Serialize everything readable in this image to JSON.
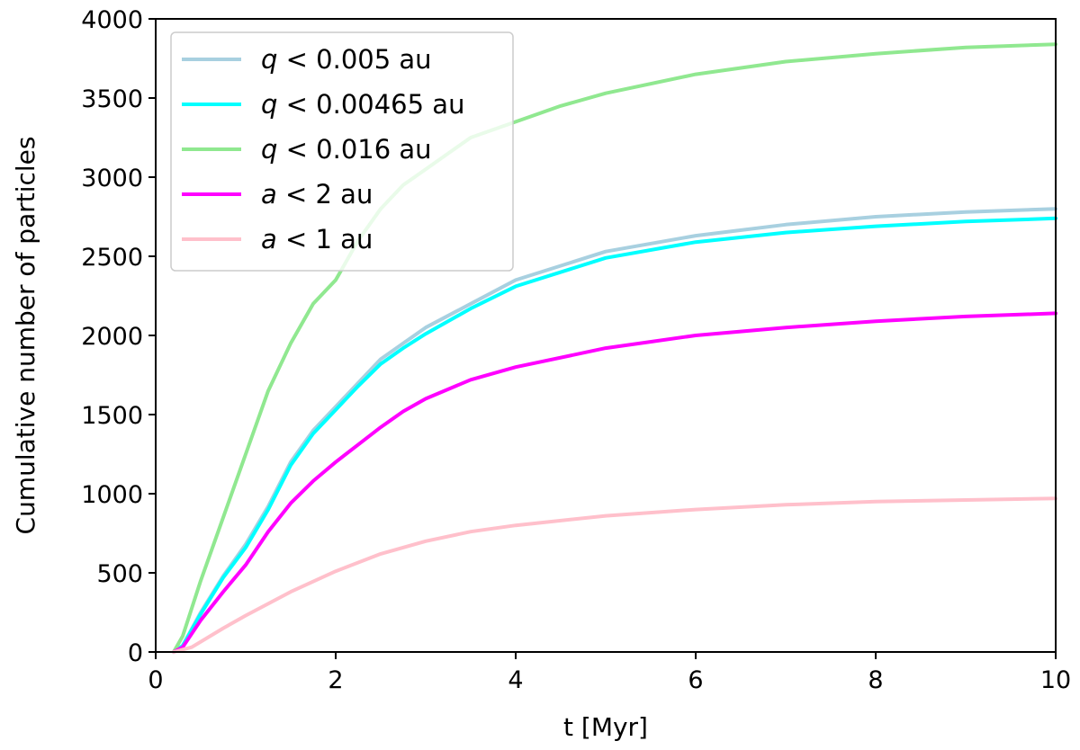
{
  "chart_data": {
    "type": "line",
    "xlabel": "t [Myr]",
    "ylabel": "Cumulative number of particles",
    "xlim": [
      0,
      10
    ],
    "ylim": [
      0,
      4000
    ],
    "xticks": [
      "0",
      "2",
      "4",
      "6",
      "8",
      "10"
    ],
    "yticks": [
      "0",
      "500",
      "1000",
      "1500",
      "2000",
      "2500",
      "3000",
      "3500",
      "4000"
    ],
    "grid": false,
    "legend_position": "top-left",
    "series": [
      {
        "name": "q < 0.005 au",
        "var": "q",
        "rest": " < 0.005 au",
        "color": "#a8d0e0",
        "x": [
          0.2,
          0.3,
          0.5,
          0.75,
          1.0,
          1.25,
          1.5,
          1.75,
          2.0,
          2.25,
          2.5,
          2.75,
          3.0,
          3.5,
          4.0,
          5.0,
          6.0,
          7.0,
          8.0,
          9.0,
          10.0
        ],
        "y": [
          0,
          40,
          250,
          480,
          680,
          920,
          1200,
          1400,
          1550,
          1700,
          1850,
          1950,
          2050,
          2200,
          2350,
          2530,
          2630,
          2700,
          2750,
          2780,
          2800
        ]
      },
      {
        "name": "q < 0.00465 au",
        "var": "q",
        "rest": " < 0.00465 au",
        "color": "#00ffff",
        "x": [
          0.2,
          0.3,
          0.5,
          0.75,
          1.0,
          1.25,
          1.5,
          1.75,
          2.0,
          2.25,
          2.5,
          2.75,
          3.0,
          3.5,
          4.0,
          5.0,
          6.0,
          7.0,
          8.0,
          9.0,
          10.0
        ],
        "y": [
          0,
          40,
          240,
          470,
          660,
          900,
          1180,
          1380,
          1530,
          1680,
          1820,
          1920,
          2010,
          2170,
          2310,
          2490,
          2590,
          2650,
          2690,
          2720,
          2740
        ]
      },
      {
        "name": "q < 0.016 au",
        "var": "q",
        "rest": " < 0.016 au",
        "color": "#90e890",
        "x": [
          0.2,
          0.3,
          0.5,
          0.75,
          1.0,
          1.25,
          1.5,
          1.75,
          2.0,
          2.25,
          2.5,
          2.75,
          3.0,
          3.5,
          4.0,
          4.5,
          5.0,
          6.0,
          7.0,
          8.0,
          9.0,
          10.0
        ],
        "y": [
          0,
          100,
          450,
          850,
          1250,
          1650,
          1950,
          2200,
          2350,
          2600,
          2800,
          2950,
          3050,
          3250,
          3350,
          3450,
          3530,
          3650,
          3730,
          3780,
          3820,
          3840
        ]
      },
      {
        "name": "a < 2 au",
        "var": "a",
        "rest": " < 2 au",
        "color": "#ff00ff",
        "x": [
          0.2,
          0.3,
          0.5,
          0.75,
          1.0,
          1.25,
          1.5,
          1.75,
          2.0,
          2.25,
          2.5,
          2.75,
          3.0,
          3.5,
          4.0,
          5.0,
          6.0,
          7.0,
          8.0,
          9.0,
          10.0
        ],
        "y": [
          0,
          30,
          200,
          380,
          550,
          760,
          940,
          1080,
          1200,
          1310,
          1420,
          1520,
          1600,
          1720,
          1800,
          1920,
          2000,
          2050,
          2090,
          2120,
          2140
        ]
      },
      {
        "name": "a < 1 au",
        "var": "a",
        "rest": " < 1 au",
        "color": "#ffc0cb",
        "x": [
          0.2,
          0.4,
          0.75,
          1.0,
          1.5,
          2.0,
          2.5,
          3.0,
          3.5,
          4.0,
          5.0,
          6.0,
          7.0,
          8.0,
          9.0,
          10.0
        ],
        "y": [
          0,
          30,
          150,
          230,
          380,
          510,
          620,
          700,
          760,
          800,
          860,
          900,
          930,
          950,
          960,
          970
        ]
      }
    ]
  }
}
